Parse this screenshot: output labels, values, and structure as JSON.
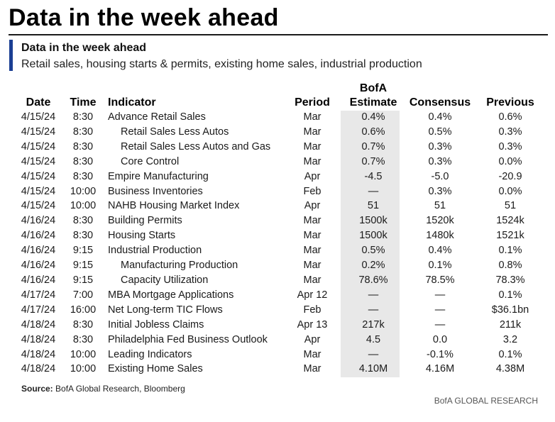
{
  "header": {
    "main_title": "Data in the week ahead",
    "sub_title": "Data in the week ahead",
    "description": "Retail sales, housing starts & permits, existing home sales, industrial production"
  },
  "table": {
    "columns": {
      "date": "Date",
      "time": "Time",
      "indicator": "Indicator",
      "period": "Period",
      "estimate_line1": "BofA",
      "estimate_line2": "Estimate",
      "consensus": "Consensus",
      "previous": "Previous"
    },
    "rows": [
      {
        "date": "4/15/24",
        "time": "8:30",
        "indicator": "Advance Retail Sales",
        "indent": false,
        "period": "Mar",
        "estimate": "0.4%",
        "consensus": "0.4%",
        "previous": "0.6%"
      },
      {
        "date": "4/15/24",
        "time": "8:30",
        "indicator": "Retail Sales Less Autos",
        "indent": true,
        "period": "Mar",
        "estimate": "0.6%",
        "consensus": "0.5%",
        "previous": "0.3%"
      },
      {
        "date": "4/15/24",
        "time": "8:30",
        "indicator": "Retail Sales Less Autos and Gas",
        "indent": true,
        "period": "Mar",
        "estimate": "0.7%",
        "consensus": "0.3%",
        "previous": "0.3%"
      },
      {
        "date": "4/15/24",
        "time": "8:30",
        "indicator": "Core Control",
        "indent": true,
        "period": "Mar",
        "estimate": "0.7%",
        "consensus": "0.3%",
        "previous": "0.0%"
      },
      {
        "date": "4/15/24",
        "time": "8:30",
        "indicator": "Empire Manufacturing",
        "indent": false,
        "period": "Apr",
        "estimate": "-4.5",
        "consensus": "-5.0",
        "previous": "-20.9"
      },
      {
        "date": "4/15/24",
        "time": "10:00",
        "indicator": "Business Inventories",
        "indent": false,
        "period": "Feb",
        "estimate": "—",
        "consensus": "0.3%",
        "previous": "0.0%"
      },
      {
        "date": "4/15/24",
        "time": "10:00",
        "indicator": "NAHB Housing Market Index",
        "indent": false,
        "period": "Apr",
        "estimate": "51",
        "consensus": "51",
        "previous": "51"
      },
      {
        "date": "4/16/24",
        "time": "8:30",
        "indicator": "Building Permits",
        "indent": false,
        "period": "Mar",
        "estimate": "1500k",
        "consensus": "1520k",
        "previous": "1524k"
      },
      {
        "date": "4/16/24",
        "time": "8:30",
        "indicator": "Housing Starts",
        "indent": false,
        "period": "Mar",
        "estimate": "1500k",
        "consensus": "1480k",
        "previous": "1521k"
      },
      {
        "date": "4/16/24",
        "time": "9:15",
        "indicator": "Industrial Production",
        "indent": false,
        "period": "Mar",
        "estimate": "0.5%",
        "consensus": "0.4%",
        "previous": "0.1%"
      },
      {
        "date": "4/16/24",
        "time": "9:15",
        "indicator": "Manufacturing Production",
        "indent": true,
        "period": "Mar",
        "estimate": "0.2%",
        "consensus": "0.1%",
        "previous": "0.8%"
      },
      {
        "date": "4/16/24",
        "time": "9:15",
        "indicator": "Capacity Utilization",
        "indent": true,
        "period": "Mar",
        "estimate": "78.6%",
        "consensus": "78.5%",
        "previous": "78.3%"
      },
      {
        "date": "4/17/24",
        "time": "7:00",
        "indicator": "MBA Mortgage Applications",
        "indent": false,
        "period": "Apr 12",
        "estimate": "—",
        "consensus": "—",
        "previous": "0.1%"
      },
      {
        "date": "4/17/24",
        "time": "16:00",
        "indicator": "Net Long-term TIC Flows",
        "indent": false,
        "period": "Feb",
        "estimate": "—",
        "consensus": "—",
        "previous": "$36.1bn"
      },
      {
        "date": "4/18/24",
        "time": "8:30",
        "indicator": "Initial Jobless Claims",
        "indent": false,
        "period": "Apr 13",
        "estimate": "217k",
        "consensus": "—",
        "previous": "211k"
      },
      {
        "date": "4/18/24",
        "time": "8:30",
        "indicator": "Philadelphia Fed Business Outlook",
        "indent": false,
        "period": "Apr",
        "estimate": "4.5",
        "consensus": "0.0",
        "previous": "3.2"
      },
      {
        "date": "4/18/24",
        "time": "10:00",
        "indicator": "Leading Indicators",
        "indent": false,
        "period": "Mar",
        "estimate": "—",
        "consensus": "-0.1%",
        "previous": "0.1%"
      },
      {
        "date": "4/18/24",
        "time": "10:00",
        "indicator": "Existing Home Sales",
        "indent": false,
        "period": "Mar",
        "estimate": "4.10M",
        "consensus": "4.16M",
        "previous": "4.38M"
      }
    ]
  },
  "footer": {
    "source_label": "Source:",
    "source_text": " BofA Global Research, Bloomberg",
    "brand": "BofA GLOBAL RESEARCH"
  },
  "colors": {
    "accent": "#1b3f93",
    "estimate_highlight": "#e8e8e8"
  }
}
